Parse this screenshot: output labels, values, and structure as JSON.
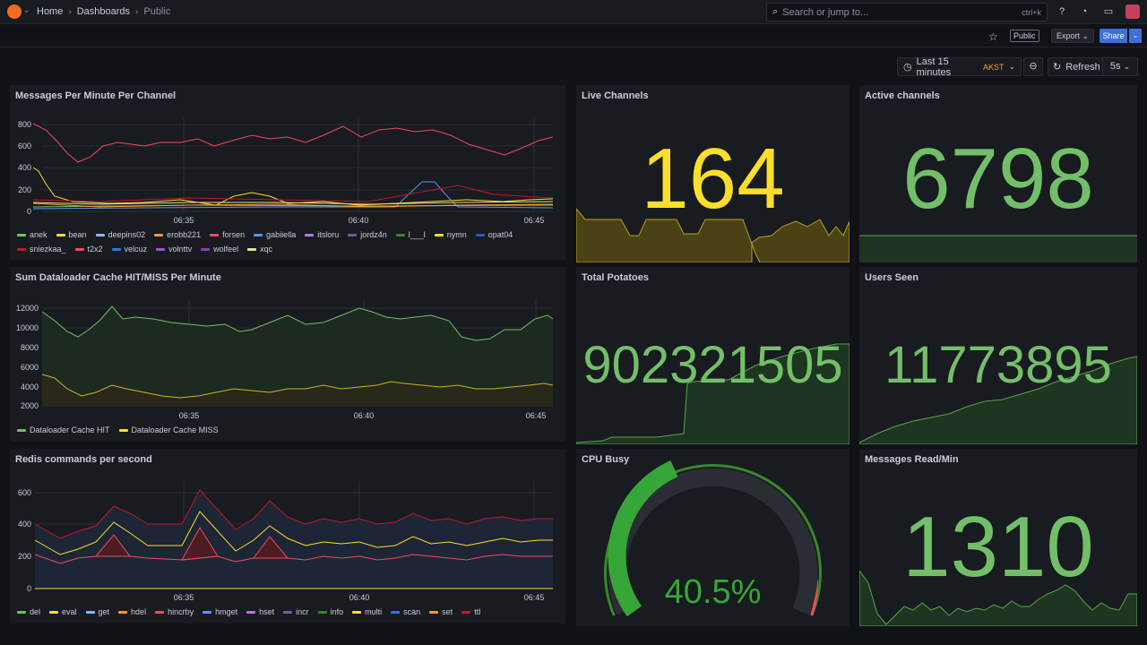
{
  "breadcrumb": {
    "home": "Home",
    "dashboards": "Dashboards",
    "current": "Public"
  },
  "search": {
    "placeholder": "Search or jump to...",
    "shortcut": "ctrl+k"
  },
  "toolbar": {
    "public_tag": "Public",
    "export_label": "Export",
    "share_label": "Share"
  },
  "time": {
    "range": "Last 15 minutes",
    "timezone": "AKST",
    "refresh_label": "Refresh",
    "interval": "5s"
  },
  "colors": {
    "green": "#73bf69",
    "yellow": "#fade2a",
    "blue": "#5794f2",
    "orange": "#ff9830",
    "red": "#f2495c",
    "purple": "#b877d9"
  },
  "panels": {
    "messages": {
      "title": "Messages Per Minute Per Channel",
      "legend": [
        {
          "name": "anek",
          "color": "#73bf69"
        },
        {
          "name": "bean",
          "color": "#fade2a"
        },
        {
          "name": "deepins02",
          "color": "#8ab8ff"
        },
        {
          "name": "erobb221",
          "color": "#ff9830"
        },
        {
          "name": "forsen",
          "color": "#f2495c"
        },
        {
          "name": "gabiiella",
          "color": "#5794f2"
        },
        {
          "name": "itsloru",
          "color": "#b877d9"
        },
        {
          "name": "jordz4n",
          "color": "#705da0"
        },
        {
          "name": "l___l",
          "color": "#37872d"
        },
        {
          "name": "nymn",
          "color": "#fade2a"
        },
        {
          "name": "opat04",
          "color": "#1f60c4"
        },
        {
          "name": "sniezkaa_",
          "color": "#c4162a"
        },
        {
          "name": "t2x2",
          "color": "#f2495c"
        },
        {
          "name": "velcuz",
          "color": "#3274d9"
        },
        {
          "name": "volnttv",
          "color": "#a352cc"
        },
        {
          "name": "wolfeel",
          "color": "#8f3bb8"
        },
        {
          "name": "xqc",
          "color": "#e0e0a0"
        }
      ],
      "y_ticks": [
        "800",
        "600",
        "400",
        "200",
        "0"
      ],
      "x_ticks": [
        "06:35",
        "06:40",
        "06:45"
      ]
    },
    "live_channels": {
      "title": "Live Channels",
      "value": "164"
    },
    "active_channels": {
      "title": "Active channels",
      "value": "6798"
    },
    "dataloader": {
      "title": "Sum Dataloader Cache HIT/MISS Per Minute",
      "legend": [
        {
          "name": "Dataloader Cache HIT",
          "color": "#73bf69"
        },
        {
          "name": "Dataloader Cache MISS",
          "color": "#fade2a"
        }
      ],
      "y_ticks": [
        "12000",
        "10000",
        "8000",
        "6000",
        "4000",
        "2000"
      ],
      "x_ticks": [
        "06:35",
        "06:40",
        "06:45"
      ]
    },
    "total_potatoes": {
      "title": "Total Potatoes",
      "value": "902321505"
    },
    "users_seen": {
      "title": "Users Seen",
      "value": "11773895"
    },
    "redis": {
      "title": "Redis commands per second",
      "legend": [
        {
          "name": "del",
          "color": "#73bf69"
        },
        {
          "name": "eval",
          "color": "#fade2a"
        },
        {
          "name": "get",
          "color": "#8ab8ff"
        },
        {
          "name": "hdel",
          "color": "#ff9830"
        },
        {
          "name": "hincrby",
          "color": "#f2495c"
        },
        {
          "name": "hmget",
          "color": "#5794f2"
        },
        {
          "name": "hset",
          "color": "#b877d9"
        },
        {
          "name": "incr",
          "color": "#705da0"
        },
        {
          "name": "info",
          "color": "#37872d"
        },
        {
          "name": "multi",
          "color": "#fade2a"
        },
        {
          "name": "scan",
          "color": "#3274d9"
        },
        {
          "name": "set",
          "color": "#ff9830"
        },
        {
          "name": "ttl",
          "color": "#c4162a"
        }
      ],
      "y_ticks": [
        "600",
        "400",
        "200",
        "0"
      ],
      "x_ticks": [
        "06:35",
        "06:40",
        "06:45"
      ]
    },
    "cpu_busy": {
      "title": "CPU Busy",
      "value": "40.5%",
      "percent": 40.5
    },
    "messages_read": {
      "title": "Messages Read/Min",
      "value": "1310"
    }
  }
}
